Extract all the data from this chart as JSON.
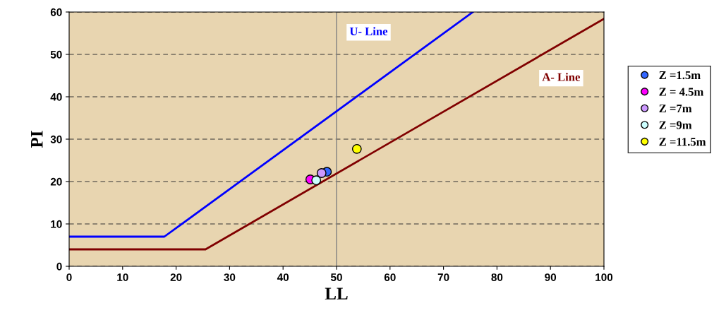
{
  "chart_data": {
    "type": "scatter",
    "xlabel": "LL",
    "ylabel": "PI",
    "xlim": [
      0,
      100
    ],
    "ylim": [
      0,
      60
    ],
    "xticks": [
      0,
      10,
      20,
      30,
      40,
      50,
      60,
      70,
      80,
      90,
      100
    ],
    "yticks": [
      0,
      10,
      20,
      30,
      40,
      50,
      60
    ],
    "grid": "y",
    "legend": "right",
    "marker": "circle",
    "series": [
      {
        "name": "Z =1.5m",
        "color": "#3366ff",
        "x": [
          48.2
        ],
        "values": [
          22.3
        ]
      },
      {
        "name": "Z = 4.5m",
        "color": "#ff00ff",
        "x": [
          45.1
        ],
        "values": [
          20.5
        ]
      },
      {
        "name": "Z =7m",
        "color": "#cc99ff",
        "x": [
          47.2
        ],
        "values": [
          22.0
        ]
      },
      {
        "name": "Z =9m",
        "color": "#ccffff",
        "x": [
          46.2
        ],
        "values": [
          20.3
        ]
      },
      {
        "name": "Z =11.5m",
        "color": "#ffff00",
        "x": [
          53.8
        ],
        "values": [
          27.7
        ]
      },
      {
        "type": "line",
        "name": "U- Line",
        "marker": "none",
        "color": "#0000ff",
        "x": [
          0,
          17.8,
          75.5
        ],
        "values": [
          7,
          7,
          60
        ]
      },
      {
        "type": "line",
        "name": "A- Line",
        "marker": "none",
        "color": "#800000",
        "x": [
          0,
          25.5,
          100
        ],
        "values": [
          4,
          4,
          58.4
        ]
      }
    ],
    "ref_lines": [
      {
        "axis": "x",
        "value": 50,
        "color": "#808080"
      }
    ]
  }
}
